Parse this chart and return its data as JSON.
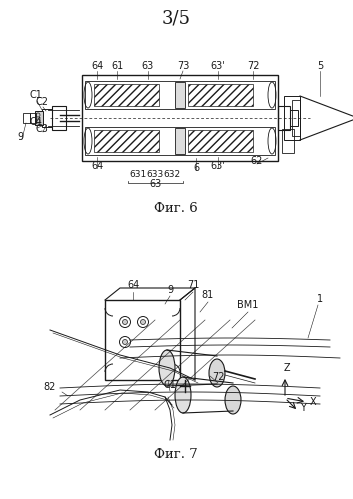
{
  "title": "3/5",
  "fig6_label": "Фиг. 6",
  "fig7_label": "Фиг. 7",
  "bg": "#ffffff",
  "lc": "#1a1a1a",
  "gray": "#888888",
  "lgray": "#cccccc"
}
